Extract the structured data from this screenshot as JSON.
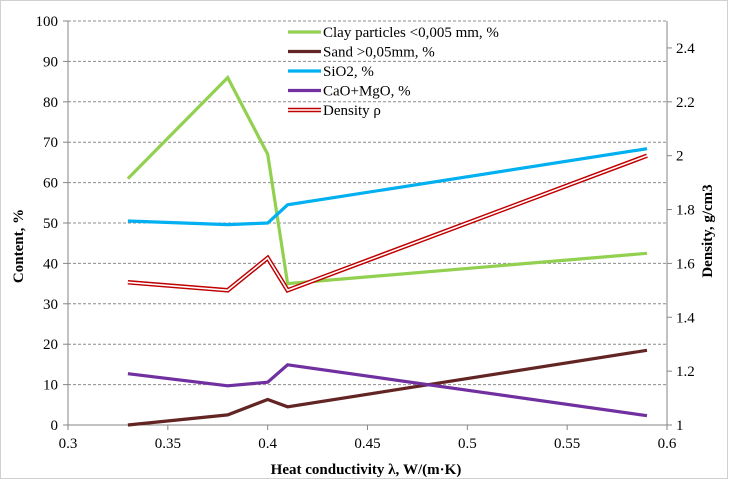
{
  "chart_data": {
    "type": "line",
    "title": "",
    "xlabel": "Heat conductivity λ, W/(m·K)",
    "ylabel": "Content, %",
    "y2label": "Density, g/cm3",
    "xlim": [
      0.3,
      0.6
    ],
    "ylim": [
      0,
      100
    ],
    "y2lim": [
      1,
      2.5
    ],
    "xticks": [
      "0.3",
      "0.35",
      "0.4",
      "0.45",
      "0.5",
      "0.55",
      "0.6"
    ],
    "xtick_values": [
      0.3,
      0.35,
      0.4,
      0.45,
      0.5,
      0.55,
      0.6
    ],
    "yticks": [
      "0",
      "10",
      "20",
      "30",
      "40",
      "50",
      "60",
      "70",
      "80",
      "90",
      "100"
    ],
    "ytick_values": [
      0,
      10,
      20,
      30,
      40,
      50,
      60,
      70,
      80,
      90,
      100
    ],
    "y2ticks": [
      "1",
      "1.2",
      "1.4",
      "1.6",
      "1.8",
      "2",
      "2.2",
      "2.4"
    ],
    "y2tick_values": [
      1,
      1.2,
      1.4,
      1.6,
      1.8,
      2,
      2.2,
      2.4
    ],
    "grid": "horizontal",
    "legend_position": "top-center",
    "x": [
      0.33,
      0.38,
      0.4,
      0.41,
      0.59
    ],
    "series": [
      {
        "name": "Clay particles <0,005 mm, %",
        "axis": "left",
        "color": "#92d050",
        "style": "solid",
        "values": [
          61,
          86,
          67,
          35,
          42.5
        ]
      },
      {
        "name": "Sand >0,05mm, %",
        "axis": "left",
        "color": "#632523",
        "style": "solid",
        "values": [
          0,
          2.5,
          6.3,
          4.5,
          18.5
        ]
      },
      {
        "name": "SiO2, %",
        "axis": "left",
        "color": "#00b0f0",
        "style": "solid",
        "values": [
          50.5,
          49.6,
          50,
          54.5,
          68.4
        ]
      },
      {
        "name": "CaO+MgO, %",
        "axis": "left",
        "color": "#7030a0",
        "style": "solid",
        "values": [
          12.7,
          9.7,
          10.6,
          14.9,
          2.3
        ]
      },
      {
        "name": "Density ρ",
        "axis": "right",
        "color": "#c00000",
        "style": "double",
        "values": [
          1.53,
          1.5,
          1.62,
          1.5,
          2.0
        ]
      }
    ]
  }
}
